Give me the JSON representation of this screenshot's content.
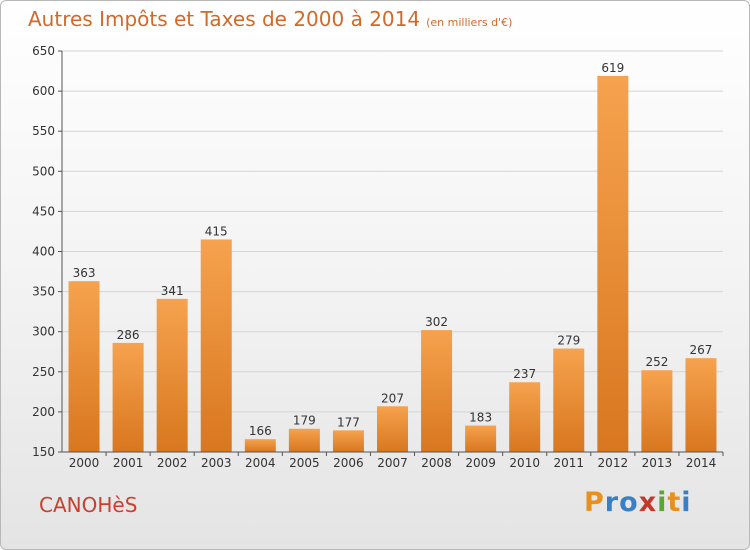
{
  "title": "Autres Impôts et Taxes de 2000 à 2014",
  "subtitle": "(en milliers d'€)",
  "commune": "CANOHèS",
  "logo": {
    "letters": [
      "P",
      "r",
      "o",
      "x",
      "i",
      "t",
      "i"
    ],
    "colors": [
      "#e8901d",
      "#3a7fc1",
      "#3a7fc1",
      "#c0392b",
      "#5aa832",
      "#e8901d",
      "#3a7fc1"
    ]
  },
  "colors": {
    "bar_light": "#f6a24e",
    "bar_dark": "#d8771f",
    "title": "#d06a2a",
    "commune": "#c8402f"
  },
  "chart_data": {
    "type": "bar",
    "categories": [
      "2000",
      "2001",
      "2002",
      "2003",
      "2004",
      "2005",
      "2006",
      "2007",
      "2008",
      "2009",
      "2010",
      "2011",
      "2012",
      "2013",
      "2014"
    ],
    "values": [
      363,
      286,
      341,
      415,
      166,
      179,
      177,
      207,
      302,
      183,
      237,
      279,
      619,
      252,
      267
    ],
    "ylim": [
      150,
      650
    ],
    "yticks": [
      150,
      200,
      250,
      300,
      350,
      400,
      450,
      500,
      550,
      600,
      650
    ],
    "grid": true
  }
}
